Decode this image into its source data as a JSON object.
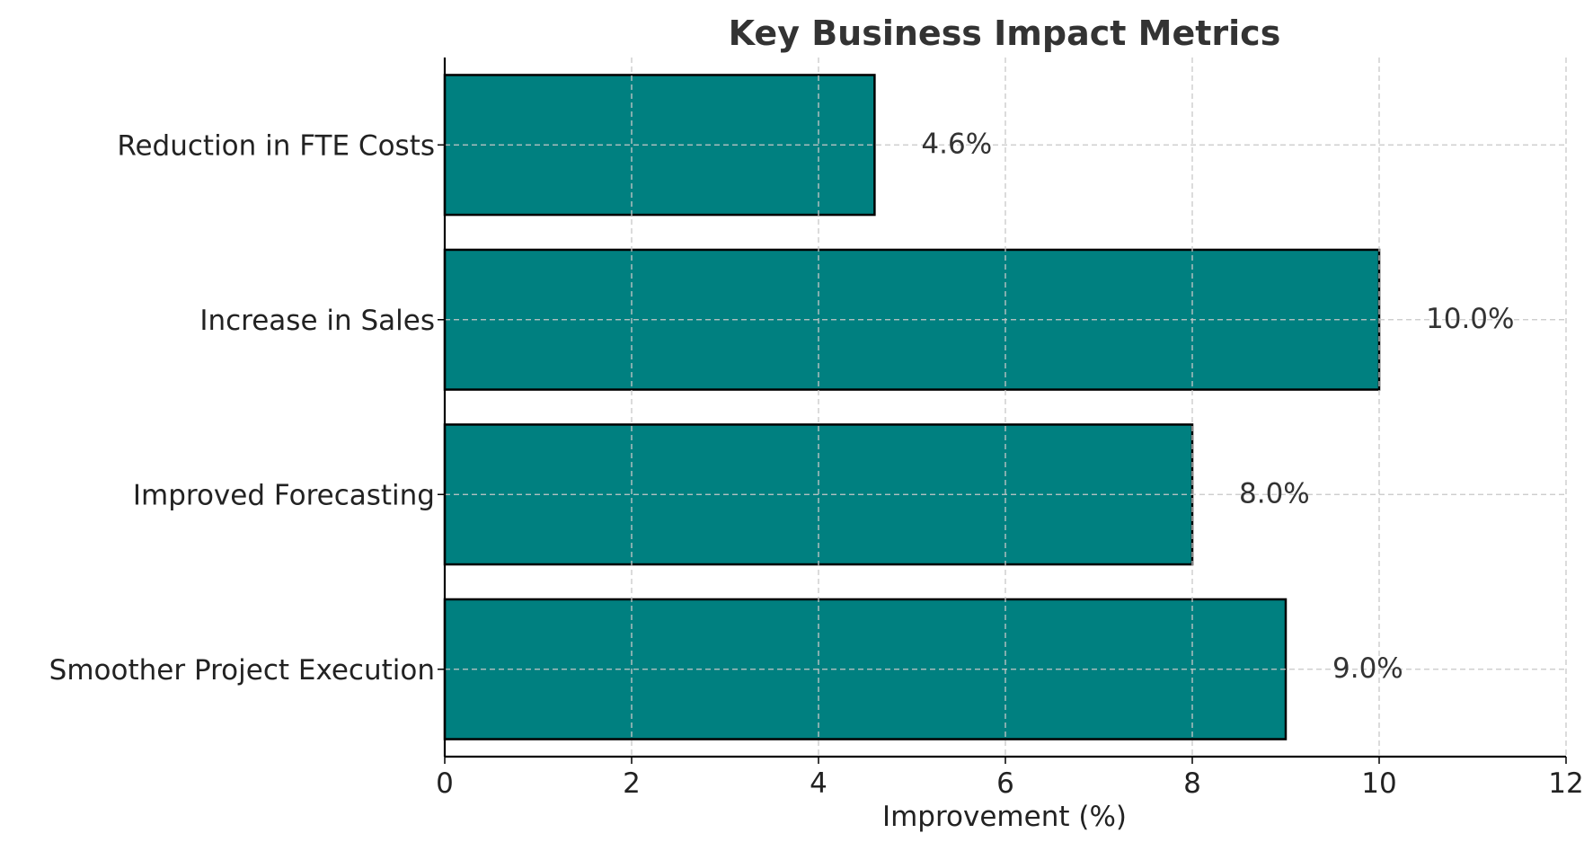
{
  "chart_data": {
    "type": "bar",
    "orientation": "horizontal",
    "title": "Key Business Impact Metrics",
    "xlabel": "Improvement (%)",
    "ylabel": "",
    "categories": [
      "Reduction in FTE Costs",
      "Increase in Sales",
      "Improved Forecasting",
      "Smoother Project Execution"
    ],
    "values": [
      4.6,
      10.0,
      8.0,
      9.0
    ],
    "value_labels": [
      "4.6%",
      "10.0%",
      "8.0%",
      "9.0%"
    ],
    "xlim": [
      0,
      12
    ],
    "xticks": [
      0,
      2,
      4,
      6,
      8,
      10,
      12
    ],
    "xtick_labels": [
      "0",
      "2",
      "4",
      "6",
      "8",
      "10",
      "12"
    ],
    "grid": true,
    "bar_color": "#008080",
    "edge_color": "#000000"
  }
}
